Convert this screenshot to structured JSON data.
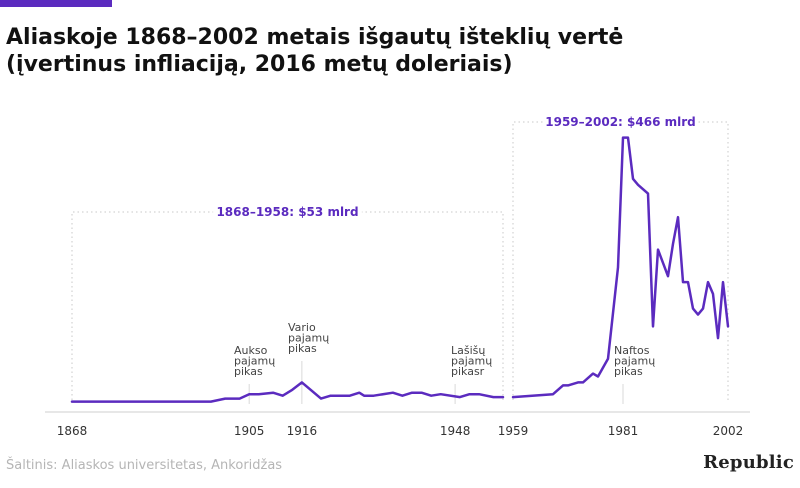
{
  "header": {
    "title_line1": "Aliaskoje 1868–2002 metais išgautų išteklių vertė",
    "title_line2": "(įvertinus infliaciją, 2016 metų doleriais)"
  },
  "footer": {
    "source": "Šaltinis: Aliaskos universitetas, Ankoridžas",
    "logo": "Republic"
  },
  "colors": {
    "accent": "#5b2bbf",
    "line": "#5b2bbf",
    "axis": "#cfcfcf",
    "bracket": "#c8c8c8",
    "text": "#333333"
  },
  "chart_data": {
    "type": "line",
    "title": "Aliaskoje 1868–2002 metais išgautų išteklių vertė (įvertinus infliaciją, 2016 metų doleriais)",
    "xlabel": "",
    "ylabel": "",
    "grid": false,
    "legend": "none",
    "xlim": [
      1868,
      2002
    ],
    "ylim": [
      0,
      100
    ],
    "x_ticks": [
      1868,
      1905,
      1916,
      1948,
      1959,
      1981,
      2002
    ],
    "segments": [
      {
        "name": "1868–1958",
        "x": [
          1868,
          1897,
          1900,
          1903,
          1905,
          1907,
          1910,
          1912,
          1914,
          1916,
          1920,
          1922,
          1926,
          1928,
          1929,
          1931,
          1935,
          1937,
          1939,
          1941,
          1943,
          1945,
          1949,
          1951,
          1953,
          1956,
          1958
        ],
        "y": [
          1.5,
          1.5,
          2.5,
          2.5,
          4,
          4,
          4.5,
          3.5,
          5.5,
          8,
          2.5,
          3.5,
          3.5,
          4.5,
          3.5,
          3.5,
          4.5,
          3.5,
          4.5,
          4.5,
          3.5,
          4,
          3,
          4,
          4,
          3,
          3
        ]
      },
      {
        "name": "1959–2002",
        "x": [
          1959,
          1967,
          1969,
          1970,
          1972,
          1973,
          1975,
          1976,
          1978,
          1980,
          1981,
          1982,
          1983,
          1984,
          1986,
          1987,
          1988,
          1990,
          1991,
          1992,
          1993,
          1994,
          1995,
          1996,
          1997,
          1998,
          1999,
          2000,
          2001,
          2002
        ],
        "y": [
          3,
          4,
          7,
          7,
          8,
          8,
          11,
          10,
          16,
          47,
          91,
          91,
          77,
          75,
          72,
          27,
          53,
          44,
          55,
          64,
          42,
          42,
          33,
          31,
          33,
          42,
          38,
          23,
          42,
          27
        ]
      }
    ],
    "period_brackets": [
      {
        "label": "1868–1958: $53 mlrd",
        "from": 1868,
        "to": 1958
      },
      {
        "label": "1959–2002: $466 mlrd",
        "from": 1959,
        "to": 2002
      }
    ],
    "annotations": [
      {
        "lines": [
          "Aukso",
          "pajamų",
          "pikas"
        ],
        "x": 1905
      },
      {
        "lines": [
          "Vario",
          "pajamų",
          "pikas"
        ],
        "x": 1916
      },
      {
        "lines": [
          "Lašišų",
          "pajamų",
          "pikasr"
        ],
        "x": 1948
      },
      {
        "lines": [
          "Naftos",
          "pajamų",
          "pikas"
        ],
        "x": 1981
      }
    ]
  }
}
